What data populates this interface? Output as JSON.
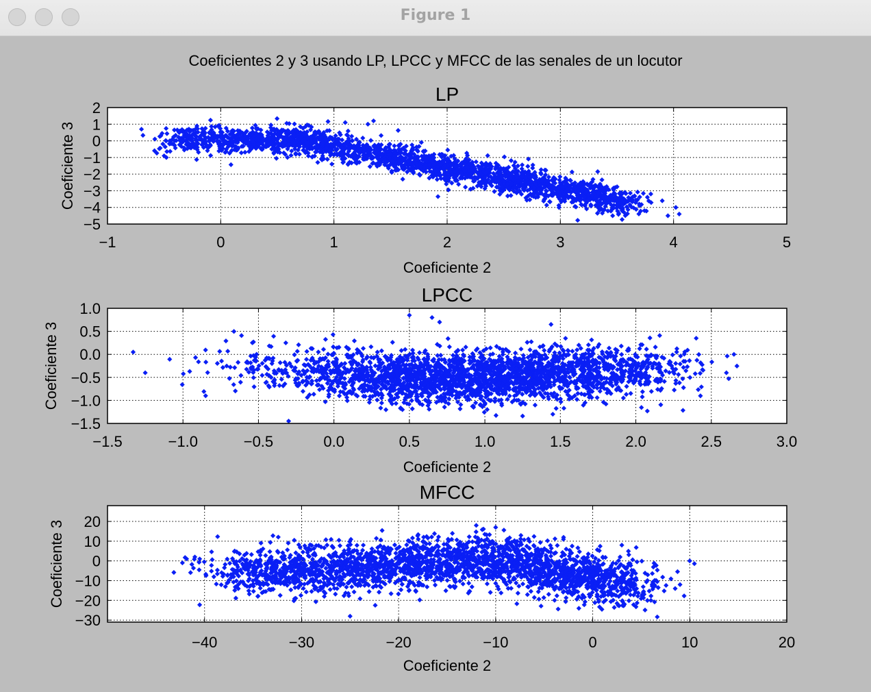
{
  "window": {
    "title": "Figure 1"
  },
  "suptitle": "Coeficientes 2 y 3 usando LP, LPCC y MFCC de las senales de un locutor",
  "colors": {
    "marker": "#0a1ff5",
    "background": "#bdbdbd",
    "axes_face": "#ffffff",
    "axes_edge": "#000000",
    "grid": "#000000"
  },
  "chart_data": [
    {
      "type": "scatter",
      "title": "LP",
      "xlabel": "Coeficiente 2",
      "ylabel": "Coeficiente 3",
      "xlim": [
        -1,
        5
      ],
      "ylim": [
        -5,
        2
      ],
      "xticks": [
        -1,
        0,
        1,
        2,
        3,
        4,
        5
      ],
      "xtick_labels": [
        "−1",
        "0",
        "1",
        "2",
        "3",
        "4",
        "5"
      ],
      "yticks": [
        -5,
        -4,
        -3,
        -2,
        -1,
        0,
        1,
        2
      ],
      "ytick_labels": [
        "−5",
        "−4",
        "−3",
        "−2",
        "−1",
        "0",
        "1",
        "2"
      ],
      "grid": true,
      "marker": "diamond",
      "trend": [
        [
          -0.45,
          0.0
        ],
        [
          0.0,
          0.1
        ],
        [
          0.7,
          0.1
        ],
        [
          1.2,
          -0.6
        ],
        [
          2.0,
          -1.6
        ],
        [
          3.0,
          -2.9
        ],
        [
          3.6,
          -3.8
        ]
      ],
      "points": [
        [
          -0.7,
          0.7
        ],
        [
          -0.5,
          -0.9
        ],
        [
          -0.48,
          -1.0
        ],
        [
          3.9,
          -3.6
        ],
        [
          3.95,
          -4.5
        ],
        [
          4.05,
          -4.4
        ],
        [
          4.02,
          -4.0
        ],
        [
          3.7,
          -3.9
        ],
        [
          1.3,
          1.0
        ],
        [
          1.1,
          1.1
        ],
        [
          1.35,
          1.2
        ]
      ]
    },
    {
      "type": "scatter",
      "title": "LPCC",
      "xlabel": "Coeficiente 2",
      "ylabel": "Coeficiente 3",
      "xlim": [
        -1.5,
        3.0
      ],
      "ylim": [
        -1.5,
        1.0
      ],
      "xticks": [
        -1.5,
        -1.0,
        -0.5,
        0.0,
        0.5,
        1.0,
        1.5,
        2.0,
        2.5,
        3.0
      ],
      "xtick_labels": [
        "−1.5",
        "−1.0",
        "−0.5",
        "0.0",
        "0.5",
        "1.0",
        "1.5",
        "2.0",
        "2.5",
        "3.0"
      ],
      "yticks": [
        -1.5,
        -1.0,
        -0.5,
        0.0,
        0.5,
        1.0
      ],
      "ytick_labels": [
        "−1.5",
        "−1.0",
        "−0.5",
        "0.0",
        "0.5",
        "1.0"
      ],
      "grid": true,
      "marker": "diamond",
      "trend": [
        [
          -1.1,
          -0.2
        ],
        [
          -0.5,
          -0.35
        ],
        [
          0.0,
          -0.4
        ],
        [
          0.6,
          -0.55
        ],
        [
          1.2,
          -0.45
        ],
        [
          1.9,
          -0.35
        ],
        [
          2.4,
          -0.45
        ]
      ],
      "points": [
        [
          -1.33,
          0.05
        ],
        [
          -1.25,
          -0.4
        ],
        [
          -0.3,
          -1.45
        ],
        [
          0.5,
          0.85
        ],
        [
          0.65,
          0.8
        ],
        [
          0.7,
          0.7
        ],
        [
          2.65,
          0.0
        ],
        [
          2.6,
          -0.4
        ],
        [
          2.4,
          0.35
        ],
        [
          1.45,
          -1.3
        ],
        [
          -0.85,
          -0.9
        ]
      ]
    },
    {
      "type": "scatter",
      "title": "MFCC",
      "xlabel": "Coeficiente 2",
      "ylabel": "Coeficiente 3",
      "xlim": [
        -50,
        20
      ],
      "ylim": [
        -31,
        28
      ],
      "xticks": [
        -40,
        -30,
        -20,
        -10,
        0,
        10,
        20
      ],
      "xtick_labels": [
        "−40",
        "−30",
        "−20",
        "−10",
        "0",
        "10",
        "20"
      ],
      "yticks": [
        -30,
        -20,
        -10,
        0,
        10,
        20
      ],
      "ytick_labels": [
        "−30",
        "−20",
        "−10",
        "0",
        "10",
        "20"
      ],
      "grid": true,
      "marker": "diamond",
      "trend": [
        [
          -37,
          -5
        ],
        [
          -30,
          -5
        ],
        [
          -20,
          -3
        ],
        [
          -13,
          2
        ],
        [
          -8,
          0
        ],
        [
          -2,
          -7
        ],
        [
          4,
          -14
        ]
      ],
      "points": [
        [
          -41,
          2
        ],
        [
          -40.5,
          1
        ],
        [
          -37,
          -8
        ],
        [
          10,
          0
        ],
        [
          9,
          -12
        ],
        [
          8.5,
          -14
        ],
        [
          -10,
          17
        ],
        [
          -12,
          18
        ],
        [
          3,
          8
        ],
        [
          6,
          -20
        ],
        [
          -25,
          -28
        ]
      ]
    }
  ]
}
